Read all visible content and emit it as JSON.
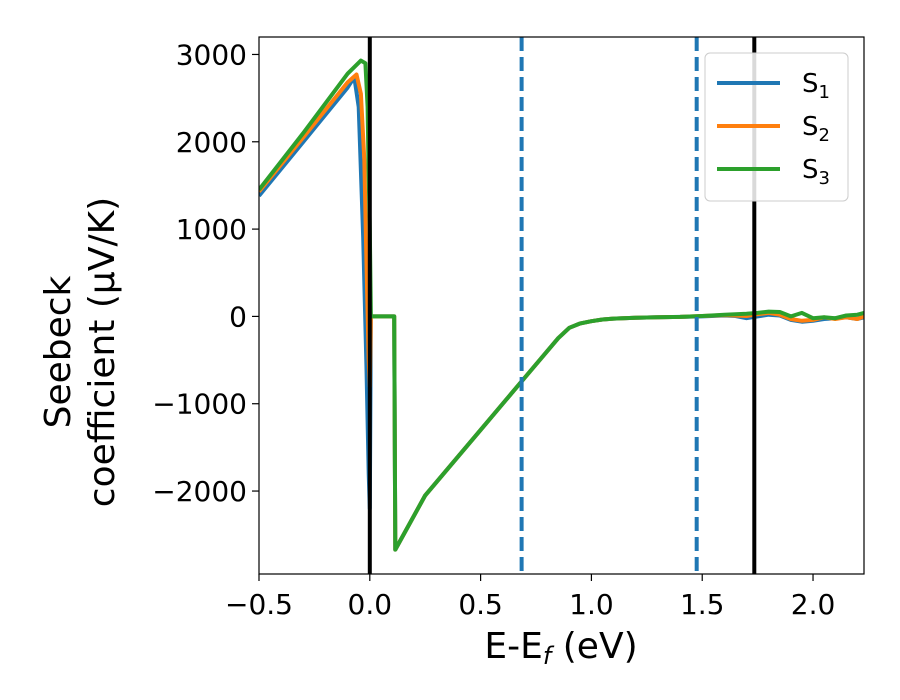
{
  "chart_data": {
    "type": "line",
    "xlabel": "E-E",
    "xlabel_subscript": "f",
    "xlabel_unit": " (eV)",
    "ylabel_line1": "Seebeck",
    "ylabel_line2": "coefficient  (μV/K)",
    "xlim": [
      -0.5,
      2.23
    ],
    "ylim": [
      -2950,
      3200
    ],
    "xticks": [
      -0.5,
      0.0,
      0.5,
      1.0,
      1.5,
      2.0
    ],
    "xtick_labels": [
      "−0.5",
      "0.0",
      "0.5",
      "1.0",
      "1.5",
      "2.0"
    ],
    "yticks": [
      -2000,
      -1000,
      0,
      1000,
      2000,
      3000
    ],
    "ytick_labels": [
      "−2000",
      "−1000",
      "0",
      "1000",
      "2000",
      "3000"
    ],
    "grid": false,
    "legend_position": "top-right",
    "vertical_lines": [
      {
        "x": 0.0,
        "style": "solid",
        "color": "#000000"
      },
      {
        "x": 0.685,
        "style": "dashed",
        "color": "#1f77b4"
      },
      {
        "x": 1.475,
        "style": "dashed",
        "color": "#1f77b4"
      },
      {
        "x": 1.735,
        "style": "solid",
        "color": "#000000"
      }
    ],
    "series": [
      {
        "name": "S",
        "subscript": "1",
        "color": "#1f77b4",
        "x": [
          -0.5,
          -0.3,
          -0.1,
          -0.07,
          -0.05,
          -0.03,
          -0.015,
          -0.005,
          0.0,
          0.005,
          0.11,
          0.115,
          0.25,
          0.5,
          0.7,
          0.85,
          0.9,
          0.95,
          1.0,
          1.05,
          1.1,
          1.2,
          1.3,
          1.4,
          1.5,
          1.6,
          1.65,
          1.7,
          1.75,
          1.8,
          1.85,
          1.9,
          1.95,
          2.0,
          2.05,
          2.1,
          2.15,
          2.2,
          2.23
        ],
        "y": [
          1380,
          2000,
          2620,
          2740,
          2400,
          900,
          -600,
          -1800,
          -2200,
          0,
          0,
          -2670,
          -2050,
          -1300,
          -700,
          -250,
          -130,
          -80,
          -55,
          -35,
          -25,
          -15,
          -10,
          -5,
          0,
          10,
          5,
          -20,
          0,
          20,
          10,
          -40,
          -60,
          -50,
          -30,
          -20,
          -10,
          -30,
          -10
        ]
      },
      {
        "name": "S",
        "subscript": "2",
        "color": "#ff7f0e",
        "x": [
          -0.5,
          -0.3,
          -0.1,
          -0.06,
          -0.04,
          -0.025,
          -0.015,
          -0.005,
          0.0,
          0.005,
          0.11,
          0.115,
          0.25,
          0.5,
          0.7,
          0.85,
          0.9,
          0.95,
          1.0,
          1.05,
          1.1,
          1.2,
          1.3,
          1.4,
          1.5,
          1.6,
          1.65,
          1.7,
          1.75,
          1.8,
          1.85,
          1.9,
          1.95,
          2.0,
          2.05,
          2.1,
          2.15,
          2.2,
          2.23
        ],
        "y": [
          1430,
          2050,
          2680,
          2770,
          2550,
          1800,
          600,
          -500,
          -800,
          0,
          0,
          -2670,
          -2050,
          -1300,
          -700,
          -250,
          -130,
          -80,
          -55,
          -35,
          -25,
          -15,
          -10,
          -5,
          5,
          15,
          10,
          5,
          25,
          40,
          20,
          -30,
          -50,
          -40,
          -10,
          -30,
          -10,
          -30,
          0
        ]
      },
      {
        "name": "S",
        "subscript": "3",
        "color": "#2ca02c",
        "x": [
          -0.5,
          -0.3,
          -0.1,
          -0.04,
          -0.02,
          -0.01,
          -0.005,
          0.0,
          0.005,
          0.11,
          0.115,
          0.25,
          0.5,
          0.7,
          0.85,
          0.9,
          0.95,
          1.0,
          1.05,
          1.1,
          1.2,
          1.3,
          1.4,
          1.5,
          1.6,
          1.65,
          1.7,
          1.75,
          1.8,
          1.85,
          1.9,
          1.95,
          2.0,
          2.05,
          2.1,
          2.15,
          2.2,
          2.23
        ],
        "y": [
          1450,
          2100,
          2780,
          2930,
          2900,
          2400,
          1600,
          1000,
          0,
          0,
          -2670,
          -2050,
          -1300,
          -700,
          -250,
          -130,
          -80,
          -55,
          -35,
          -25,
          -15,
          -10,
          -5,
          5,
          20,
          25,
          30,
          40,
          55,
          50,
          0,
          40,
          -20,
          -10,
          -20,
          10,
          20,
          40
        ]
      }
    ]
  }
}
